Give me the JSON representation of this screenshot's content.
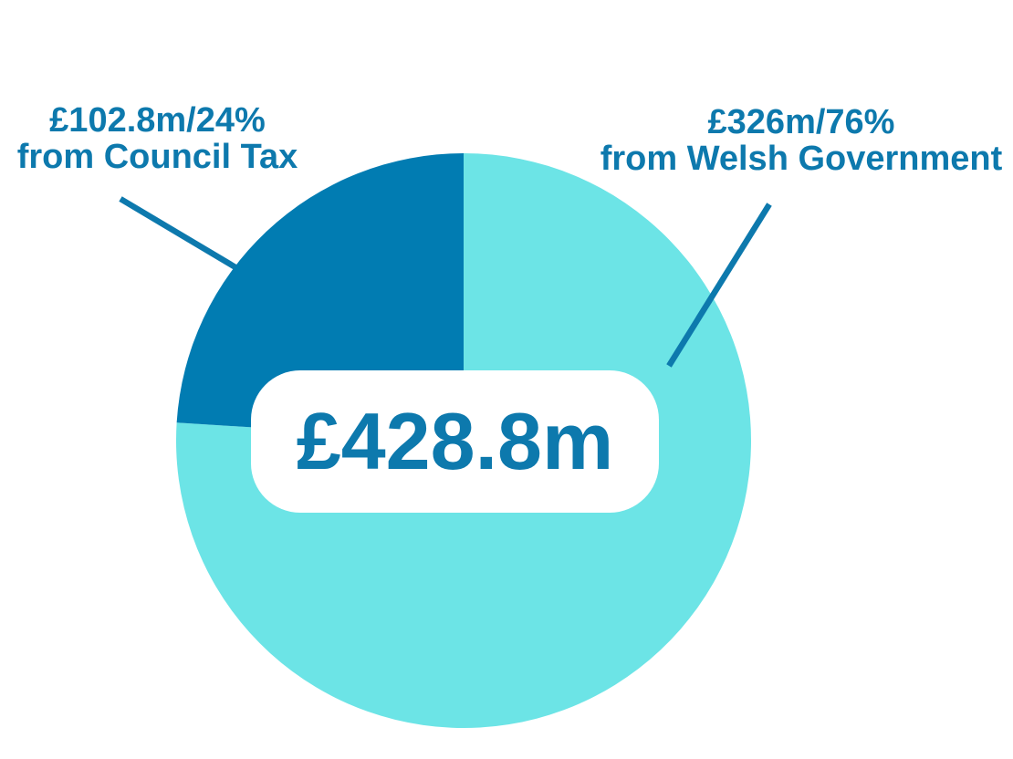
{
  "colors": {
    "page_background": "#FFFFFF",
    "text": "#0D79AD",
    "leader_line": "#0D79AD",
    "badge_background": "#FFFFFF",
    "slice_welsh_government": "#6CE4E6",
    "slice_council_tax": "#017CB2"
  },
  "chart_data": {
    "type": "pie",
    "center_label": "£428.8m",
    "total_value_millions": 428.8,
    "currency_symbol": "£",
    "start_angle_deg": 0,
    "direction": "clockwise",
    "legend": "none",
    "slices": [
      {
        "name": "Welsh Government",
        "value_millions": 326,
        "percent": 76,
        "color": "#6CE4E6",
        "callout_line1": "£326m/76%",
        "callout_line2": "from Welsh Government"
      },
      {
        "name": "Council Tax",
        "value_millions": 102.8,
        "percent": 24,
        "color": "#017CB2",
        "callout_line1": "£102.8m/24%",
        "callout_line2": "from Council Tax"
      }
    ]
  }
}
